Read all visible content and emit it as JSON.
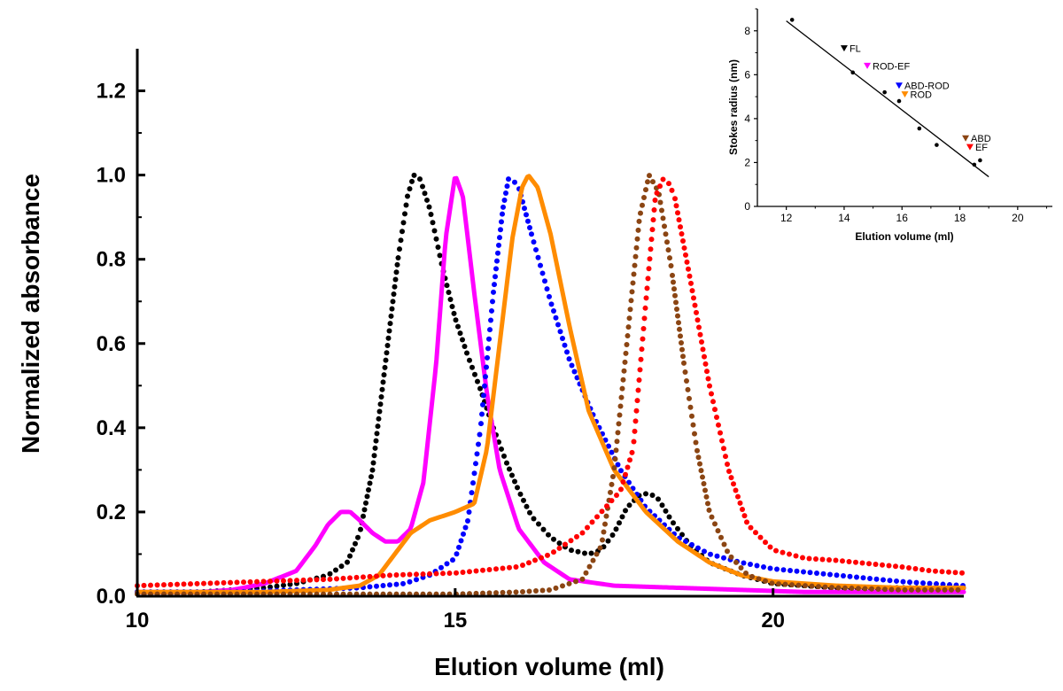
{
  "chart_data": [
    {
      "type": "line",
      "xlabel": "Elution volume (ml)",
      "ylabel": "Normalized absorbance",
      "xlim": [
        10,
        23
      ],
      "ylim": [
        0,
        1.3
      ],
      "x_ticks": [
        "10",
        "15",
        "20"
      ],
      "y_ticks": [
        "0.0",
        "0.2",
        "0.4",
        "0.6",
        "0.8",
        "1.0",
        "1.2"
      ],
      "grid": false,
      "legend": "none",
      "series": [
        {
          "color": "#000000",
          "style": "dotted-to-solid",
          "points": [
            [
              10.0,
              0.01
            ],
            [
              11.0,
              0.01
            ],
            [
              12.0,
              0.02
            ],
            [
              12.5,
              0.03
            ],
            [
              13.0,
              0.05
            ],
            [
              13.3,
              0.08
            ],
            [
              13.5,
              0.15
            ],
            [
              13.7,
              0.3
            ],
            [
              13.9,
              0.55
            ],
            [
              14.1,
              0.8
            ],
            [
              14.25,
              0.95
            ],
            [
              14.35,
              1.0
            ],
            [
              14.45,
              0.99
            ],
            [
              14.6,
              0.92
            ],
            [
              14.8,
              0.78
            ],
            [
              15.0,
              0.66
            ],
            [
              15.2,
              0.57
            ],
            [
              15.4,
              0.49
            ],
            [
              15.6,
              0.4
            ],
            [
              15.8,
              0.32
            ],
            [
              16.0,
              0.25
            ],
            [
              16.2,
              0.19
            ],
            [
              16.5,
              0.14
            ],
            [
              16.8,
              0.11
            ],
            [
              17.1,
              0.1
            ],
            [
              17.3,
              0.11
            ],
            [
              17.5,
              0.15
            ],
            [
              17.7,
              0.21
            ],
            [
              17.9,
              0.24
            ],
            [
              18.05,
              0.245
            ],
            [
              18.2,
              0.23
            ],
            [
              18.4,
              0.18
            ],
            [
              18.7,
              0.12
            ],
            [
              19.0,
              0.08
            ],
            [
              19.5,
              0.05
            ],
            [
              20.0,
              0.03
            ],
            [
              21.0,
              0.02
            ],
            [
              23.0,
              0.02
            ]
          ]
        },
        {
          "color": "#ff00ff",
          "style": "solid",
          "points": [
            [
              10.0,
              0.01
            ],
            [
              11.0,
              0.01
            ],
            [
              11.5,
              0.015
            ],
            [
              12.0,
              0.03
            ],
            [
              12.5,
              0.06
            ],
            [
              12.8,
              0.12
            ],
            [
              13.0,
              0.17
            ],
            [
              13.2,
              0.2
            ],
            [
              13.35,
              0.2
            ],
            [
              13.5,
              0.18
            ],
            [
              13.7,
              0.15
            ],
            [
              13.9,
              0.13
            ],
            [
              14.1,
              0.13
            ],
            [
              14.3,
              0.16
            ],
            [
              14.5,
              0.27
            ],
            [
              14.7,
              0.55
            ],
            [
              14.85,
              0.85
            ],
            [
              15.0,
              1.0
            ],
            [
              15.12,
              0.95
            ],
            [
              15.3,
              0.72
            ],
            [
              15.5,
              0.48
            ],
            [
              15.7,
              0.3
            ],
            [
              16.0,
              0.16
            ],
            [
              16.4,
              0.08
            ],
            [
              16.8,
              0.04
            ],
            [
              17.5,
              0.025
            ],
            [
              18.5,
              0.02
            ],
            [
              19.5,
              0.015
            ],
            [
              20.5,
              0.01
            ],
            [
              23.0,
              0.01
            ]
          ]
        },
        {
          "color": "#0000ff",
          "style": "dotted",
          "points": [
            [
              10.0,
              0.01
            ],
            [
              11.5,
              0.01
            ],
            [
              12.5,
              0.015
            ],
            [
              13.5,
              0.02
            ],
            [
              14.2,
              0.03
            ],
            [
              14.6,
              0.05
            ],
            [
              15.0,
              0.09
            ],
            [
              15.2,
              0.18
            ],
            [
              15.4,
              0.4
            ],
            [
              15.6,
              0.72
            ],
            [
              15.75,
              0.92
            ],
            [
              15.85,
              1.0
            ],
            [
              16.0,
              0.97
            ],
            [
              16.2,
              0.86
            ],
            [
              16.5,
              0.7
            ],
            [
              16.8,
              0.56
            ],
            [
              17.2,
              0.42
            ],
            [
              17.6,
              0.3
            ],
            [
              18.0,
              0.21
            ],
            [
              18.5,
              0.14
            ],
            [
              19.0,
              0.1
            ],
            [
              19.5,
              0.08
            ],
            [
              20.0,
              0.065
            ],
            [
              21.0,
              0.05
            ],
            [
              22.0,
              0.035
            ],
            [
              23.0,
              0.025
            ]
          ]
        },
        {
          "color": "#ff8c00",
          "style": "solid",
          "points": [
            [
              10.0,
              0.01
            ],
            [
              12.0,
              0.01
            ],
            [
              13.0,
              0.015
            ],
            [
              13.5,
              0.025
            ],
            [
              13.8,
              0.05
            ],
            [
              14.0,
              0.09
            ],
            [
              14.3,
              0.15
            ],
            [
              14.6,
              0.18
            ],
            [
              15.0,
              0.2
            ],
            [
              15.3,
              0.22
            ],
            [
              15.5,
              0.35
            ],
            [
              15.7,
              0.6
            ],
            [
              15.9,
              0.85
            ],
            [
              16.05,
              0.97
            ],
            [
              16.15,
              1.0
            ],
            [
              16.3,
              0.97
            ],
            [
              16.5,
              0.86
            ],
            [
              16.8,
              0.64
            ],
            [
              17.1,
              0.44
            ],
            [
              17.5,
              0.3
            ],
            [
              18.0,
              0.2
            ],
            [
              18.5,
              0.13
            ],
            [
              19.0,
              0.08
            ],
            [
              19.5,
              0.05
            ],
            [
              20.0,
              0.035
            ],
            [
              21.0,
              0.025
            ],
            [
              22.0,
              0.02
            ],
            [
              23.0,
              0.02
            ]
          ]
        },
        {
          "color": "#8b4513",
          "style": "dotted-to-solid",
          "points": [
            [
              10.0,
              0.005
            ],
            [
              15.0,
              0.005
            ],
            [
              16.0,
              0.01
            ],
            [
              16.5,
              0.015
            ],
            [
              17.0,
              0.04
            ],
            [
              17.3,
              0.12
            ],
            [
              17.5,
              0.3
            ],
            [
              17.7,
              0.6
            ],
            [
              17.9,
              0.9
            ],
            [
              18.05,
              1.0
            ],
            [
              18.2,
              0.96
            ],
            [
              18.4,
              0.78
            ],
            [
              18.6,
              0.55
            ],
            [
              18.8,
              0.35
            ],
            [
              19.0,
              0.2
            ],
            [
              19.3,
              0.1
            ],
            [
              19.6,
              0.05
            ],
            [
              20.0,
              0.03
            ],
            [
              21.0,
              0.02
            ],
            [
              22.0,
              0.015
            ],
            [
              23.0,
              0.015
            ]
          ]
        },
        {
          "color": "#ff0000",
          "style": "dotted",
          "points": [
            [
              10.0,
              0.025
            ],
            [
              11.0,
              0.03
            ],
            [
              12.0,
              0.035
            ],
            [
              13.0,
              0.04
            ],
            [
              14.0,
              0.05
            ],
            [
              15.0,
              0.055
            ],
            [
              16.0,
              0.07
            ],
            [
              16.5,
              0.1
            ],
            [
              17.0,
              0.15
            ],
            [
              17.3,
              0.2
            ],
            [
              17.6,
              0.25
            ],
            [
              17.8,
              0.35
            ],
            [
              18.0,
              0.7
            ],
            [
              18.15,
              0.95
            ],
            [
              18.3,
              1.0
            ],
            [
              18.45,
              0.95
            ],
            [
              18.7,
              0.75
            ],
            [
              19.0,
              0.5
            ],
            [
              19.3,
              0.3
            ],
            [
              19.6,
              0.17
            ],
            [
              20.0,
              0.11
            ],
            [
              20.5,
              0.09
            ],
            [
              21.0,
              0.085
            ],
            [
              22.0,
              0.07
            ],
            [
              22.5,
              0.06
            ],
            [
              23.0,
              0.055
            ]
          ]
        }
      ]
    },
    {
      "type": "scatter",
      "xlabel": "Elution volume (ml)",
      "ylabel": "Stokes radius (nm)",
      "xlim": [
        11,
        21.2
      ],
      "ylim": [
        0,
        9
      ],
      "x_ticks": [
        "12",
        "14",
        "16",
        "18",
        "20"
      ],
      "y_ticks": [
        "0",
        "2",
        "4",
        "6",
        "8"
      ],
      "legend": "none",
      "standards": [
        [
          12.2,
          8.5
        ],
        [
          14.3,
          6.1
        ],
        [
          15.4,
          5.2
        ],
        [
          15.9,
          4.8
        ],
        [
          16.6,
          3.55
        ],
        [
          17.2,
          2.8
        ],
        [
          18.5,
          1.9
        ],
        [
          18.7,
          2.1
        ]
      ],
      "fit_line": [
        [
          12.0,
          8.45
        ],
        [
          19.0,
          1.35
        ]
      ],
      "labeled_points": [
        {
          "label": "FL",
          "x": 14.0,
          "y": 7.2,
          "color": "#000000"
        },
        {
          "label": "ROD-EF",
          "x": 14.8,
          "y": 6.4,
          "color": "#ff00ff"
        },
        {
          "label": "ABD-ROD",
          "x": 15.9,
          "y": 5.5,
          "color": "#0000ff"
        },
        {
          "label": "ROD",
          "x": 16.1,
          "y": 5.1,
          "color": "#ff8c00"
        },
        {
          "label": "ABD",
          "x": 18.2,
          "y": 3.1,
          "color": "#8b4513"
        },
        {
          "label": "EF",
          "x": 18.35,
          "y": 2.7,
          "color": "#ff0000"
        }
      ]
    }
  ]
}
